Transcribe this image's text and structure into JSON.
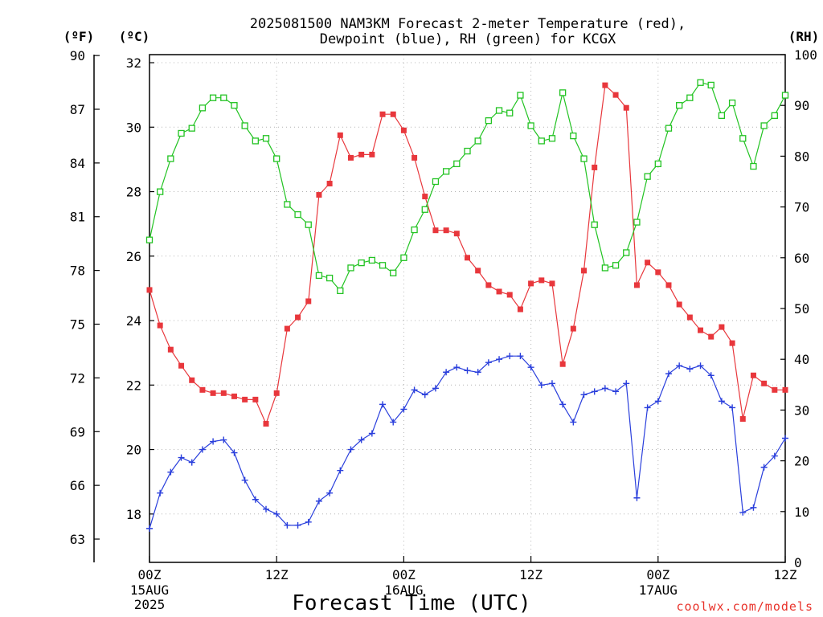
{
  "chart_data": {
    "type": "line",
    "title_line1": "2025081500 NAM3KM Forecast 2-meter Temperature (red),",
    "title_line2": "Dewpoint (blue), RH (green) for KCGX",
    "xlabel": "Forecast Time (UTC)",
    "credit": "coolwx.com/models",
    "unit_f": "(ºF)",
    "unit_c": "(ºC)",
    "unit_rh": "(RH)",
    "x_range_hours": [
      0,
      60
    ],
    "x_ticks": [
      {
        "hour": 0,
        "label": "00Z",
        "sub1": "15AUG",
        "sub2": "2025"
      },
      {
        "hour": 12,
        "label": "12Z",
        "sub1": "",
        "sub2": ""
      },
      {
        "hour": 24,
        "label": "00Z",
        "sub1": "16AUG",
        "sub2": ""
      },
      {
        "hour": 36,
        "label": "12Z",
        "sub1": "",
        "sub2": ""
      },
      {
        "hour": 48,
        "label": "00Z",
        "sub1": "17AUG",
        "sub2": ""
      },
      {
        "hour": 60,
        "label": "12Z",
        "sub1": "",
        "sub2": ""
      }
    ],
    "y_c_range": [
      16.5,
      32.25
    ],
    "y_c_ticks": [
      "18",
      "20",
      "22",
      "24",
      "26",
      "28",
      "30",
      "32"
    ],
    "y_f_ticks": [
      "63",
      "66",
      "69",
      "72",
      "75",
      "78",
      "81",
      "84",
      "87",
      "90"
    ],
    "y_rh_range": [
      0,
      100
    ],
    "y_rh_ticks": [
      "0",
      "10",
      "20",
      "30",
      "40",
      "50",
      "60",
      "70",
      "80",
      "90",
      "100"
    ],
    "series": [
      {
        "key": "temperature",
        "unit": "C",
        "color": "#e8373c",
        "marker": "filled-square",
        "values": [
          24.95,
          23.85,
          23.1,
          22.6,
          22.15,
          21.85,
          21.75,
          21.75,
          21.65,
          21.55,
          21.55,
          20.8,
          21.75,
          23.75,
          24.1,
          24.6,
          27.9,
          28.25,
          29.75,
          29.05,
          29.15,
          29.15,
          30.4,
          30.4,
          29.9,
          29.05,
          27.85,
          26.8,
          26.8,
          26.7,
          25.95,
          25.55,
          25.1,
          24.9,
          24.8,
          24.35,
          25.15,
          25.25,
          25.15,
          22.65,
          23.75,
          25.55,
          28.75,
          31.3,
          31.0,
          30.6,
          25.1,
          25.8,
          25.5,
          25.1,
          24.5,
          24.1,
          23.7,
          23.5,
          23.8,
          23.3,
          20.95,
          22.3,
          22.05,
          21.85,
          21.85
        ]
      },
      {
        "key": "dewpoint",
        "unit": "C",
        "color": "#2a3fdc",
        "marker": "plus",
        "values": [
          17.55,
          18.65,
          19.3,
          19.75,
          19.6,
          20.0,
          20.25,
          20.3,
          19.9,
          19.05,
          18.45,
          18.15,
          18.0,
          17.65,
          17.65,
          17.75,
          18.4,
          18.65,
          19.35,
          20.0,
          20.3,
          20.5,
          21.4,
          20.85,
          21.25,
          21.85,
          21.7,
          21.9,
          22.4,
          22.55,
          22.45,
          22.4,
          22.7,
          22.8,
          22.9,
          22.9,
          22.55,
          22.0,
          22.05,
          21.4,
          20.85,
          21.7,
          21.8,
          21.9,
          21.8,
          22.05,
          18.5,
          21.3,
          21.5,
          22.35,
          22.6,
          22.5,
          22.6,
          22.3,
          21.5,
          21.3,
          18.05,
          18.2,
          19.45,
          19.8,
          20.35
        ]
      },
      {
        "key": "rh",
        "unit": "%",
        "color": "#22c322",
        "marker": "open-square",
        "values": [
          63.5,
          73,
          79.5,
          84.5,
          85.5,
          89.5,
          91.5,
          91.5,
          90,
          86,
          83,
          83.5,
          79.5,
          70.5,
          68.5,
          66.5,
          56.5,
          56,
          53.5,
          58,
          59,
          59.5,
          58.5,
          57,
          60,
          65.5,
          69.5,
          75,
          77,
          78.5,
          81,
          83,
          87,
          89,
          88.5,
          92,
          86,
          83,
          83.5,
          92.5,
          84,
          79.5,
          66.5,
          58,
          58.5,
          61,
          67,
          76,
          78.5,
          85.5,
          90,
          91.5,
          94.5,
          94,
          88,
          90.5,
          83.5,
          78,
          86,
          88,
          92
        ]
      }
    ]
  }
}
